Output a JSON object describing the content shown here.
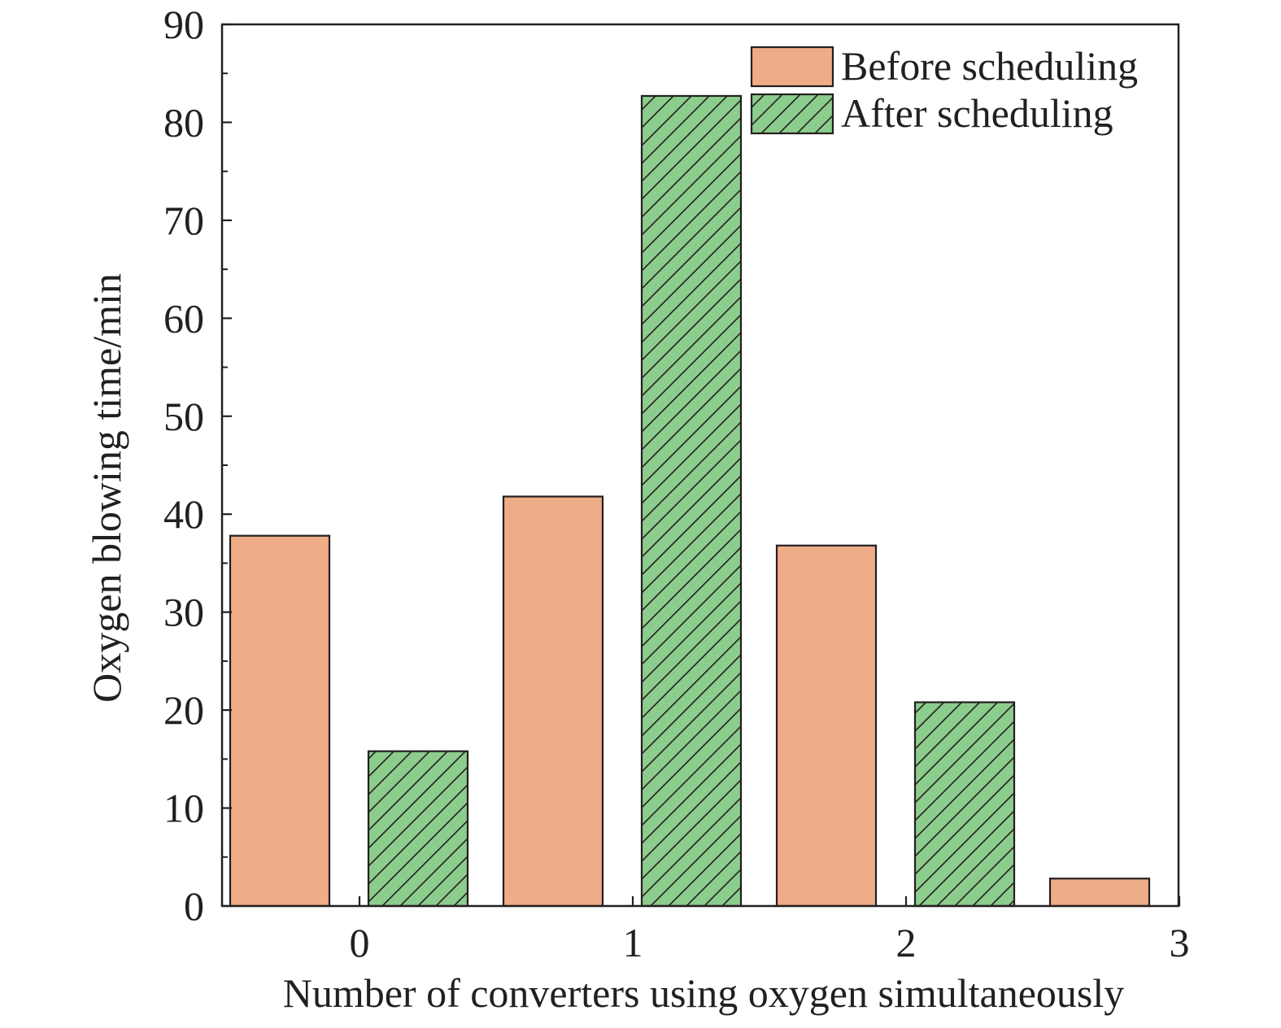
{
  "chart_data": {
    "type": "bar",
    "categories": [
      "0",
      "1",
      "2",
      "3"
    ],
    "series": [
      {
        "name": "Before scheduling",
        "values": [
          37.8,
          41.8,
          36.8,
          2.8
        ],
        "color": "#eead86",
        "pattern": "solid"
      },
      {
        "name": "After scheduling",
        "values": [
          15.8,
          82.7,
          20.8,
          0
        ],
        "color": "#8ccc8c",
        "pattern": "hatched"
      }
    ],
    "title": "",
    "xlabel": "Number of converters using oxygen simultaneously",
    "ylabel": "Oxygen blowing time/min",
    "ylim": [
      0,
      90
    ],
    "yticks": [
      "0",
      "10",
      "20",
      "30",
      "40",
      "50",
      "60",
      "70",
      "80",
      "90"
    ],
    "xticks": [
      "0",
      "1",
      "2",
      "3"
    ],
    "grid": false,
    "legend_position": "top-right"
  }
}
